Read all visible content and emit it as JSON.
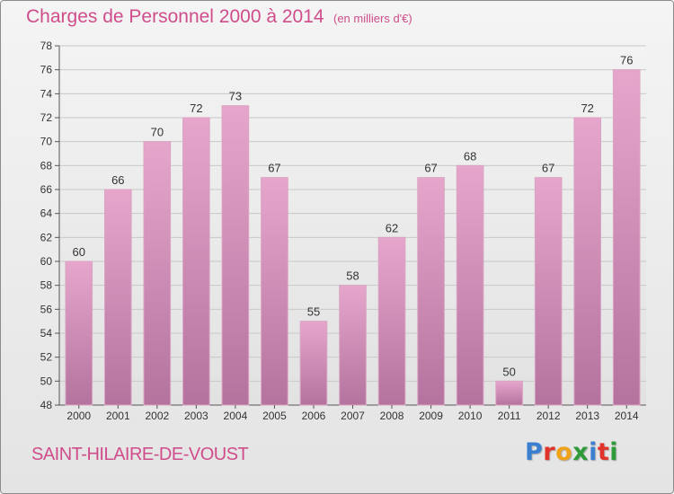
{
  "header": {
    "title": "Charges de Personnel 2000 à 2014",
    "subtitle": "(en milliers d'€)"
  },
  "footer": {
    "town": "SAINT-HILAIRE-DE-VOUST",
    "logo_text": "Proxiti",
    "logo_colors": [
      "#3b7fd0",
      "#e0342b",
      "#f0a21b",
      "#2e9a3a",
      "#3b7fd0",
      "#e0342b",
      "#2e9a3a"
    ]
  },
  "colors": {
    "bar_top": "#e6a6cc",
    "bar_bottom": "#b4739e",
    "bar_side": "#d9a4c2",
    "accent": "#d04d8b",
    "axis": "#555555",
    "grid": "#c8c8c8"
  },
  "chart_data": {
    "type": "bar",
    "title": "Charges de Personnel 2000 à 2014",
    "subtitle": "(en milliers d'€)",
    "categories": [
      "2000",
      "2001",
      "2002",
      "2003",
      "2004",
      "2005",
      "2006",
      "2007",
      "2008",
      "2009",
      "2010",
      "2011",
      "2012",
      "2013",
      "2014"
    ],
    "values": [
      60,
      66,
      70,
      72,
      73,
      67,
      55,
      58,
      62,
      67,
      68,
      50,
      67,
      72,
      76
    ],
    "data_labels": [
      "60",
      "66",
      "70",
      "72",
      "73",
      "67",
      "55",
      "58",
      "62",
      "67",
      "68",
      "50",
      "67",
      "72",
      "76"
    ],
    "ylim": [
      48,
      78
    ],
    "yticks": [
      48,
      50,
      52,
      54,
      56,
      58,
      60,
      62,
      64,
      66,
      68,
      70,
      72,
      74,
      76,
      78
    ],
    "grid": true,
    "legend": "none"
  }
}
